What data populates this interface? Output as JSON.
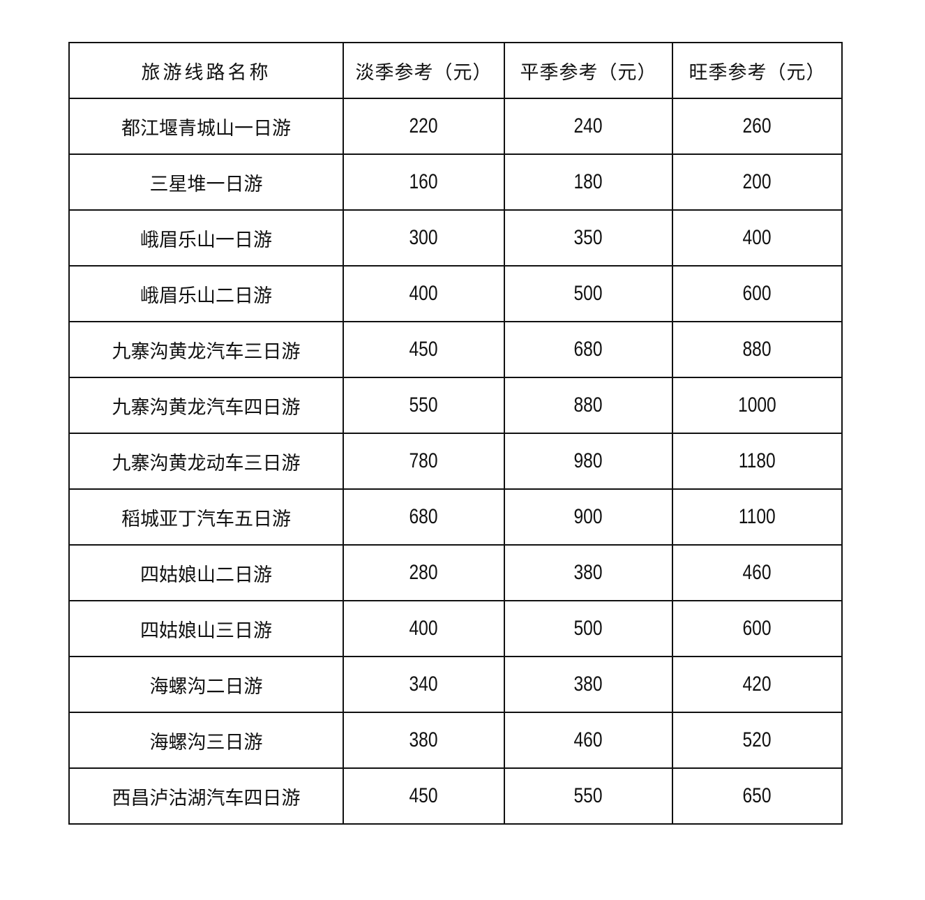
{
  "table": {
    "headers": [
      "旅游线路名称",
      "淡季参考（元）",
      "平季参考（元）",
      "旺季参考（元）"
    ],
    "rows": [
      [
        "都江堰青城山一日游",
        "220",
        "240",
        "260"
      ],
      [
        "三星堆一日游",
        "160",
        "180",
        "200"
      ],
      [
        "峨眉乐山一日游",
        "300",
        "350",
        "400"
      ],
      [
        "峨眉乐山二日游",
        "400",
        "500",
        "600"
      ],
      [
        "九寨沟黄龙汽车三日游",
        "450",
        "680",
        "880"
      ],
      [
        "九寨沟黄龙汽车四日游",
        "550",
        "880",
        "1000"
      ],
      [
        "九寨沟黄龙动车三日游",
        "780",
        "980",
        "1180"
      ],
      [
        "稻城亚丁汽车五日游",
        "680",
        "900",
        "1100"
      ],
      [
        "四姑娘山二日游",
        "280",
        "380",
        "460"
      ],
      [
        "四姑娘山三日游",
        "400",
        "500",
        "600"
      ],
      [
        "海螺沟二日游",
        "340",
        "380",
        "420"
      ],
      [
        "海螺沟三日游",
        "380",
        "460",
        "520"
      ],
      [
        "西昌泸沽湖汽车四日游",
        "450",
        "550",
        "650"
      ]
    ]
  }
}
